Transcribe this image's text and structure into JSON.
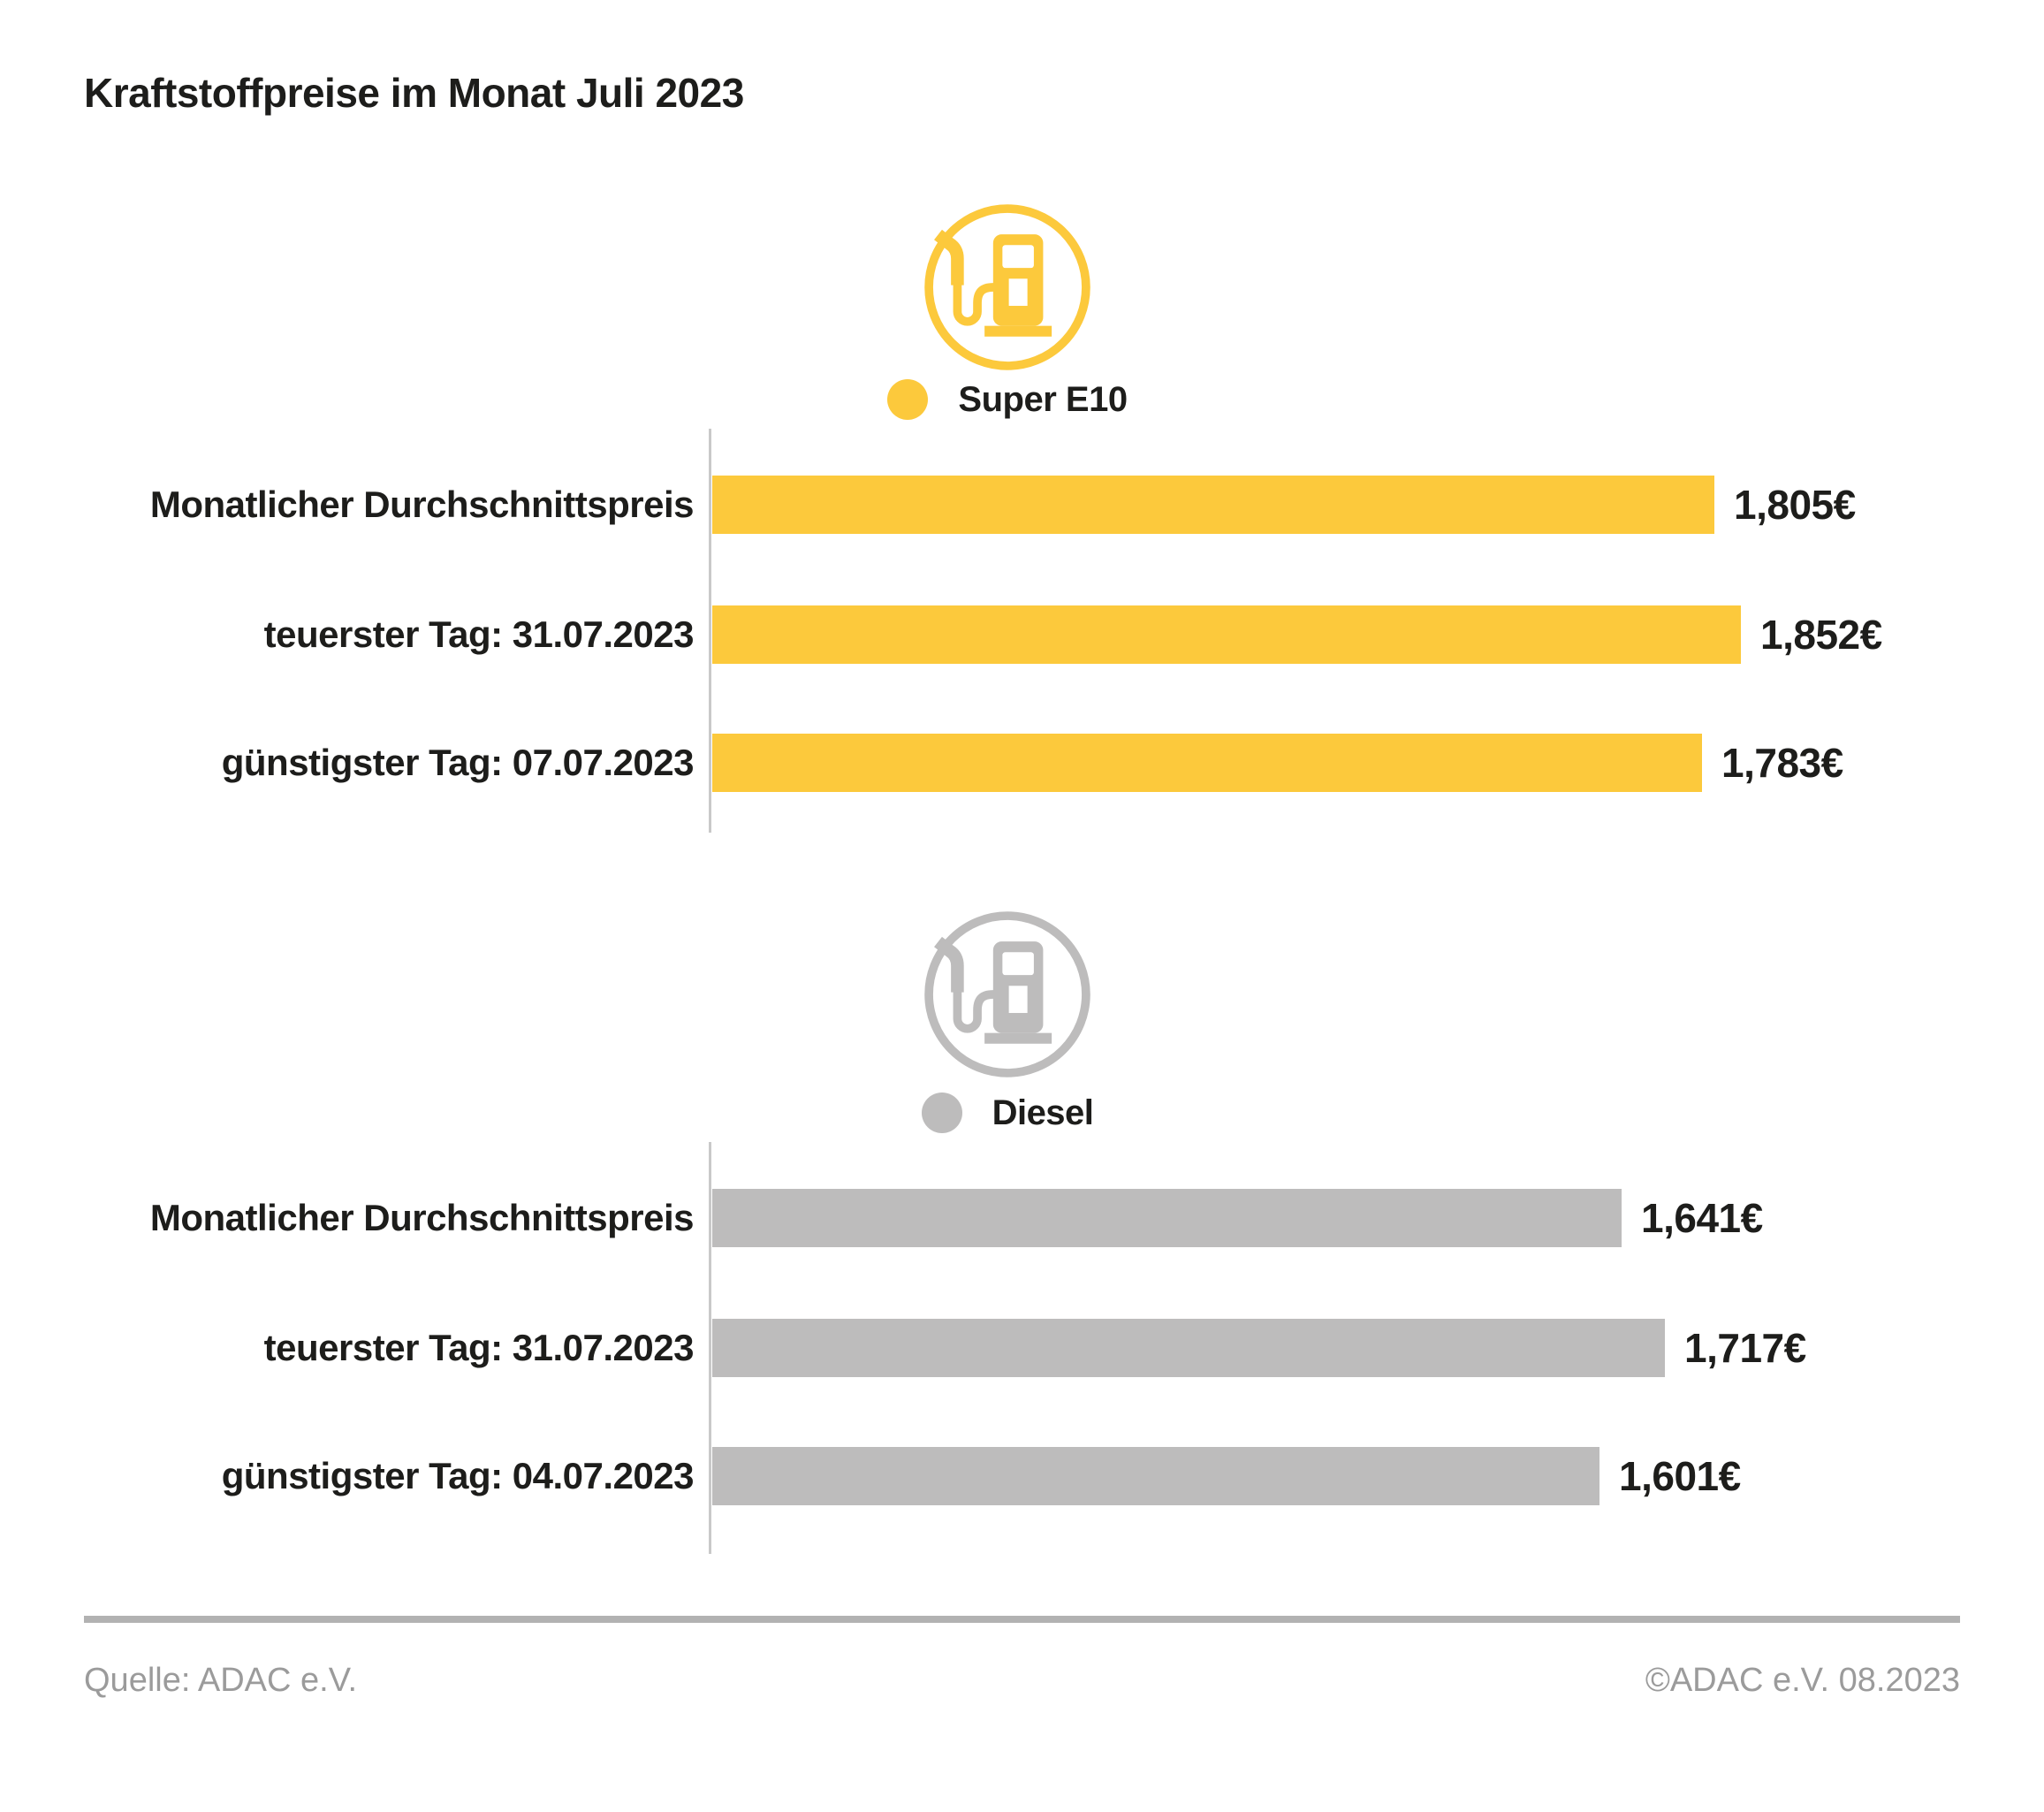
{
  "title": "Kraftstoffpreise im Monat Juli 2023",
  "colors": {
    "super_e10": "#FCC93C",
    "diesel": "#BDBCBC",
    "text": "#1D1D1B",
    "axis": "#C9C9C9",
    "footer_text": "#9B9B9B",
    "footer_rule": "#B2B2B2"
  },
  "footer": {
    "source": "Quelle: ADAC e.V.",
    "copyright": "©ADAC e.V. 08.2023"
  },
  "chart_data": [
    {
      "type": "bar",
      "orientation": "horizontal",
      "title": "Super E10",
      "legend": "Super E10",
      "icon": "fuel-pump-icon",
      "color": "#FCC93C",
      "categories": [
        "Monatlicher Durchschnittspreis",
        "teuerster Tag: 31.07.2023",
        "günstigster Tag: 07.07.2023"
      ],
      "values": [
        1.805,
        1.852,
        1.783
      ],
      "value_labels": [
        "1,805€",
        "1,852€",
        "1,783€"
      ],
      "unit_symbol": "€",
      "grid": false,
      "legend_position": "top-center"
    },
    {
      "type": "bar",
      "orientation": "horizontal",
      "title": "Diesel",
      "legend": "Diesel",
      "icon": "fuel-pump-icon",
      "color": "#BDBCBC",
      "categories": [
        "Monatlicher Durchschnittspreis",
        "teuerster Tag: 31.07.2023",
        "günstigster Tag: 04.07.2023"
      ],
      "values": [
        1.641,
        1.717,
        1.601
      ],
      "value_labels": [
        "1,641€",
        "1,717€",
        "1,601€"
      ],
      "unit_symbol": "€",
      "grid": false,
      "legend_position": "top-center"
    }
  ]
}
